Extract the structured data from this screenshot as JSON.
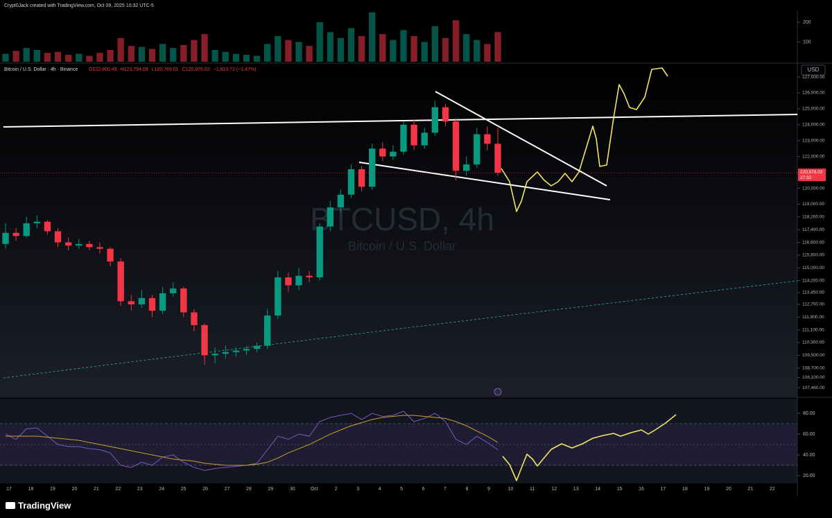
{
  "header": "Crypt0Jack created with TradingView.com, Oct 09, 2025 10:32 UTC-5",
  "branding": "TradingView",
  "chart_data": {
    "type": "candlestick",
    "title": "Bitcoin / U.S. Dollar · 4h · Binance",
    "ohlc_legend": [
      "O122,800.49",
      "H123,794.09",
      "L120,789.01",
      "C120,976.02",
      "−1,810.72 (−1.47%)"
    ],
    "watermark": "BTCUSD, 4h",
    "watermark_subtitle": "Bitcoin / U.S. Dollar",
    "currency": "USD",
    "last_price_label": "120,976.02",
    "countdown": "27:32",
    "up_color": "#089981",
    "down_color": "#f23645",
    "open": [
      116500,
      117200,
      117000,
      117800,
      117900,
      117300,
      116600,
      116400,
      116500,
      116300,
      116200,
      115400,
      112900,
      112700,
      113100,
      112300,
      113400,
      113700,
      112200,
      111400,
      109500,
      109600,
      109700,
      109800,
      109900,
      110100,
      112000,
      114400,
      113900,
      114500,
      114400,
      117600,
      118800,
      119600,
      121200,
      120100,
      122500,
      122000,
      122300,
      124000,
      122700,
      123500,
      125100,
      124200,
      121100,
      121500,
      123400,
      122800.49
    ],
    "high": [
      117800,
      117500,
      118200,
      118300,
      118000,
      117500,
      116900,
      116800,
      116700,
      116600,
      116300,
      115600,
      113300,
      113600,
      113300,
      113800,
      114100,
      113800,
      112400,
      111500,
      110000,
      110100,
      110000,
      110100,
      110300,
      112400,
      114800,
      114700,
      115000,
      114800,
      117800,
      119200,
      119900,
      121500,
      121400,
      122800,
      122900,
      122700,
      124200,
      124300,
      123800,
      125500,
      125300,
      124400,
      122000,
      123800,
      123900,
      123794.09
    ],
    "low": [
      116200,
      116700,
      116900,
      117500,
      117100,
      116300,
      116100,
      116200,
      116100,
      115900,
      115100,
      112600,
      112300,
      112500,
      111900,
      112100,
      113200,
      111900,
      111000,
      108900,
      109000,
      109300,
      109400,
      109500,
      109700,
      109900,
      111800,
      113500,
      113600,
      114100,
      114200,
      117300,
      118500,
      119400,
      119800,
      119900,
      121700,
      121800,
      122100,
      122400,
      122500,
      123300,
      123900,
      120500,
      120800,
      121300,
      122400,
      120789.01
    ],
    "close": [
      117200,
      117000,
      117800,
      117900,
      117300,
      116600,
      116400,
      116500,
      116300,
      116200,
      115400,
      112900,
      112700,
      113100,
      112300,
      113400,
      113700,
      112200,
      111400,
      109500,
      109600,
      109700,
      109800,
      109900,
      110100,
      112000,
      114400,
      113900,
      114500,
      114400,
      117600,
      118800,
      119600,
      121200,
      120100,
      122500,
      122000,
      122300,
      124000,
      122700,
      123500,
      125100,
      124200,
      121100,
      121500,
      123400,
      122800,
      120976.02
    ],
    "ylim": [
      106900,
      127830
    ],
    "yticks": [
      {
        "value": 127000,
        "label": "127,000.00"
      },
      {
        "value": 126000,
        "label": "126,000.00"
      },
      {
        "value": 125000,
        "label": "125,000.00"
      },
      {
        "value": 124000,
        "label": "124,000.00"
      },
      {
        "value": 123000,
        "label": "123,000.00"
      },
      {
        "value": 122000,
        "label": "122,000.00"
      },
      {
        "value": 121000,
        "label": "121,000.00"
      },
      {
        "value": 120000,
        "label": "120,000.00"
      },
      {
        "value": 119000,
        "label": "119,000.00"
      },
      {
        "value": 118200,
        "label": "118,200.00"
      },
      {
        "value": 117400,
        "label": "117,400.00"
      },
      {
        "value": 116600,
        "label": "116,600.00"
      },
      {
        "value": 115800,
        "label": "115,800.00"
      },
      {
        "value": 115000,
        "label": "115,000.00"
      },
      {
        "value": 114200,
        "label": "114,200.00"
      },
      {
        "value": 113450,
        "label": "113,450.00"
      },
      {
        "value": 112700,
        "label": "112,700.00"
      },
      {
        "value": 111900,
        "label": "111,900.00"
      },
      {
        "value": 111100,
        "label": "111,100.00"
      },
      {
        "value": 110300,
        "label": "110,300.00"
      },
      {
        "value": 109500,
        "label": "109,500.00"
      },
      {
        "value": 108700,
        "label": "108,700.00"
      },
      {
        "value": 108100,
        "label": "108,100.00"
      },
      {
        "value": 107460,
        "label": "107,460.00"
      }
    ],
    "x_labels": [
      "17",
      "18",
      "19",
      "20",
      "21",
      "22",
      "23",
      "24",
      "25",
      "26",
      "27",
      "28",
      "29",
      "30",
      "Oct",
      "2",
      "3",
      "4",
      "5",
      "6",
      "7",
      "8",
      "9",
      "10",
      "11",
      "12",
      "13",
      "14",
      "15",
      "16",
      "17",
      "18",
      "19",
      "20",
      "21",
      "22"
    ],
    "volume": {
      "values": [
        40,
        55,
        70,
        60,
        45,
        50,
        35,
        40,
        30,
        45,
        60,
        120,
        80,
        75,
        65,
        90,
        70,
        85,
        110,
        140,
        60,
        50,
        40,
        35,
        30,
        90,
        130,
        110,
        100,
        80,
        200,
        150,
        120,
        170,
        130,
        250,
        140,
        110,
        160,
        130,
        100,
        180,
        120,
        210,
        140,
        110,
        90,
        150
      ],
      "ylim": [
        0,
        260
      ],
      "yticks": [
        100,
        200
      ]
    },
    "rsi": {
      "values": [
        60,
        55,
        65,
        66,
        58,
        50,
        48,
        48,
        46,
        45,
        42,
        30,
        28,
        33,
        30,
        38,
        40,
        33,
        28,
        25,
        27,
        28,
        29,
        30,
        32,
        45,
        58,
        55,
        60,
        58,
        72,
        76,
        78,
        80,
        74,
        80,
        77,
        78,
        82,
        72,
        75,
        80,
        72,
        55,
        50,
        58,
        52,
        45
      ],
      "ma": [
        58,
        58,
        58,
        58,
        57,
        56,
        55,
        54,
        52,
        50,
        48,
        46,
        44,
        42,
        40,
        38,
        36,
        35,
        34,
        32,
        31,
        30,
        30,
        30,
        31,
        33,
        37,
        42,
        46,
        50,
        55,
        60,
        64,
        68,
        71,
        74,
        76,
        77,
        78,
        78,
        77,
        76,
        75,
        72,
        68,
        63,
        58,
        52
      ],
      "color": "#7e57c2",
      "ma_color": "#c9a227",
      "ylim": [
        12.7,
        94
      ],
      "yticks": [
        {
          "value": 80,
          "label": "80.00"
        },
        {
          "value": 60,
          "label": "60.00"
        },
        {
          "value": 40,
          "label": "40.00"
        },
        {
          "value": 20,
          "label": "20.00"
        }
      ]
    }
  }
}
